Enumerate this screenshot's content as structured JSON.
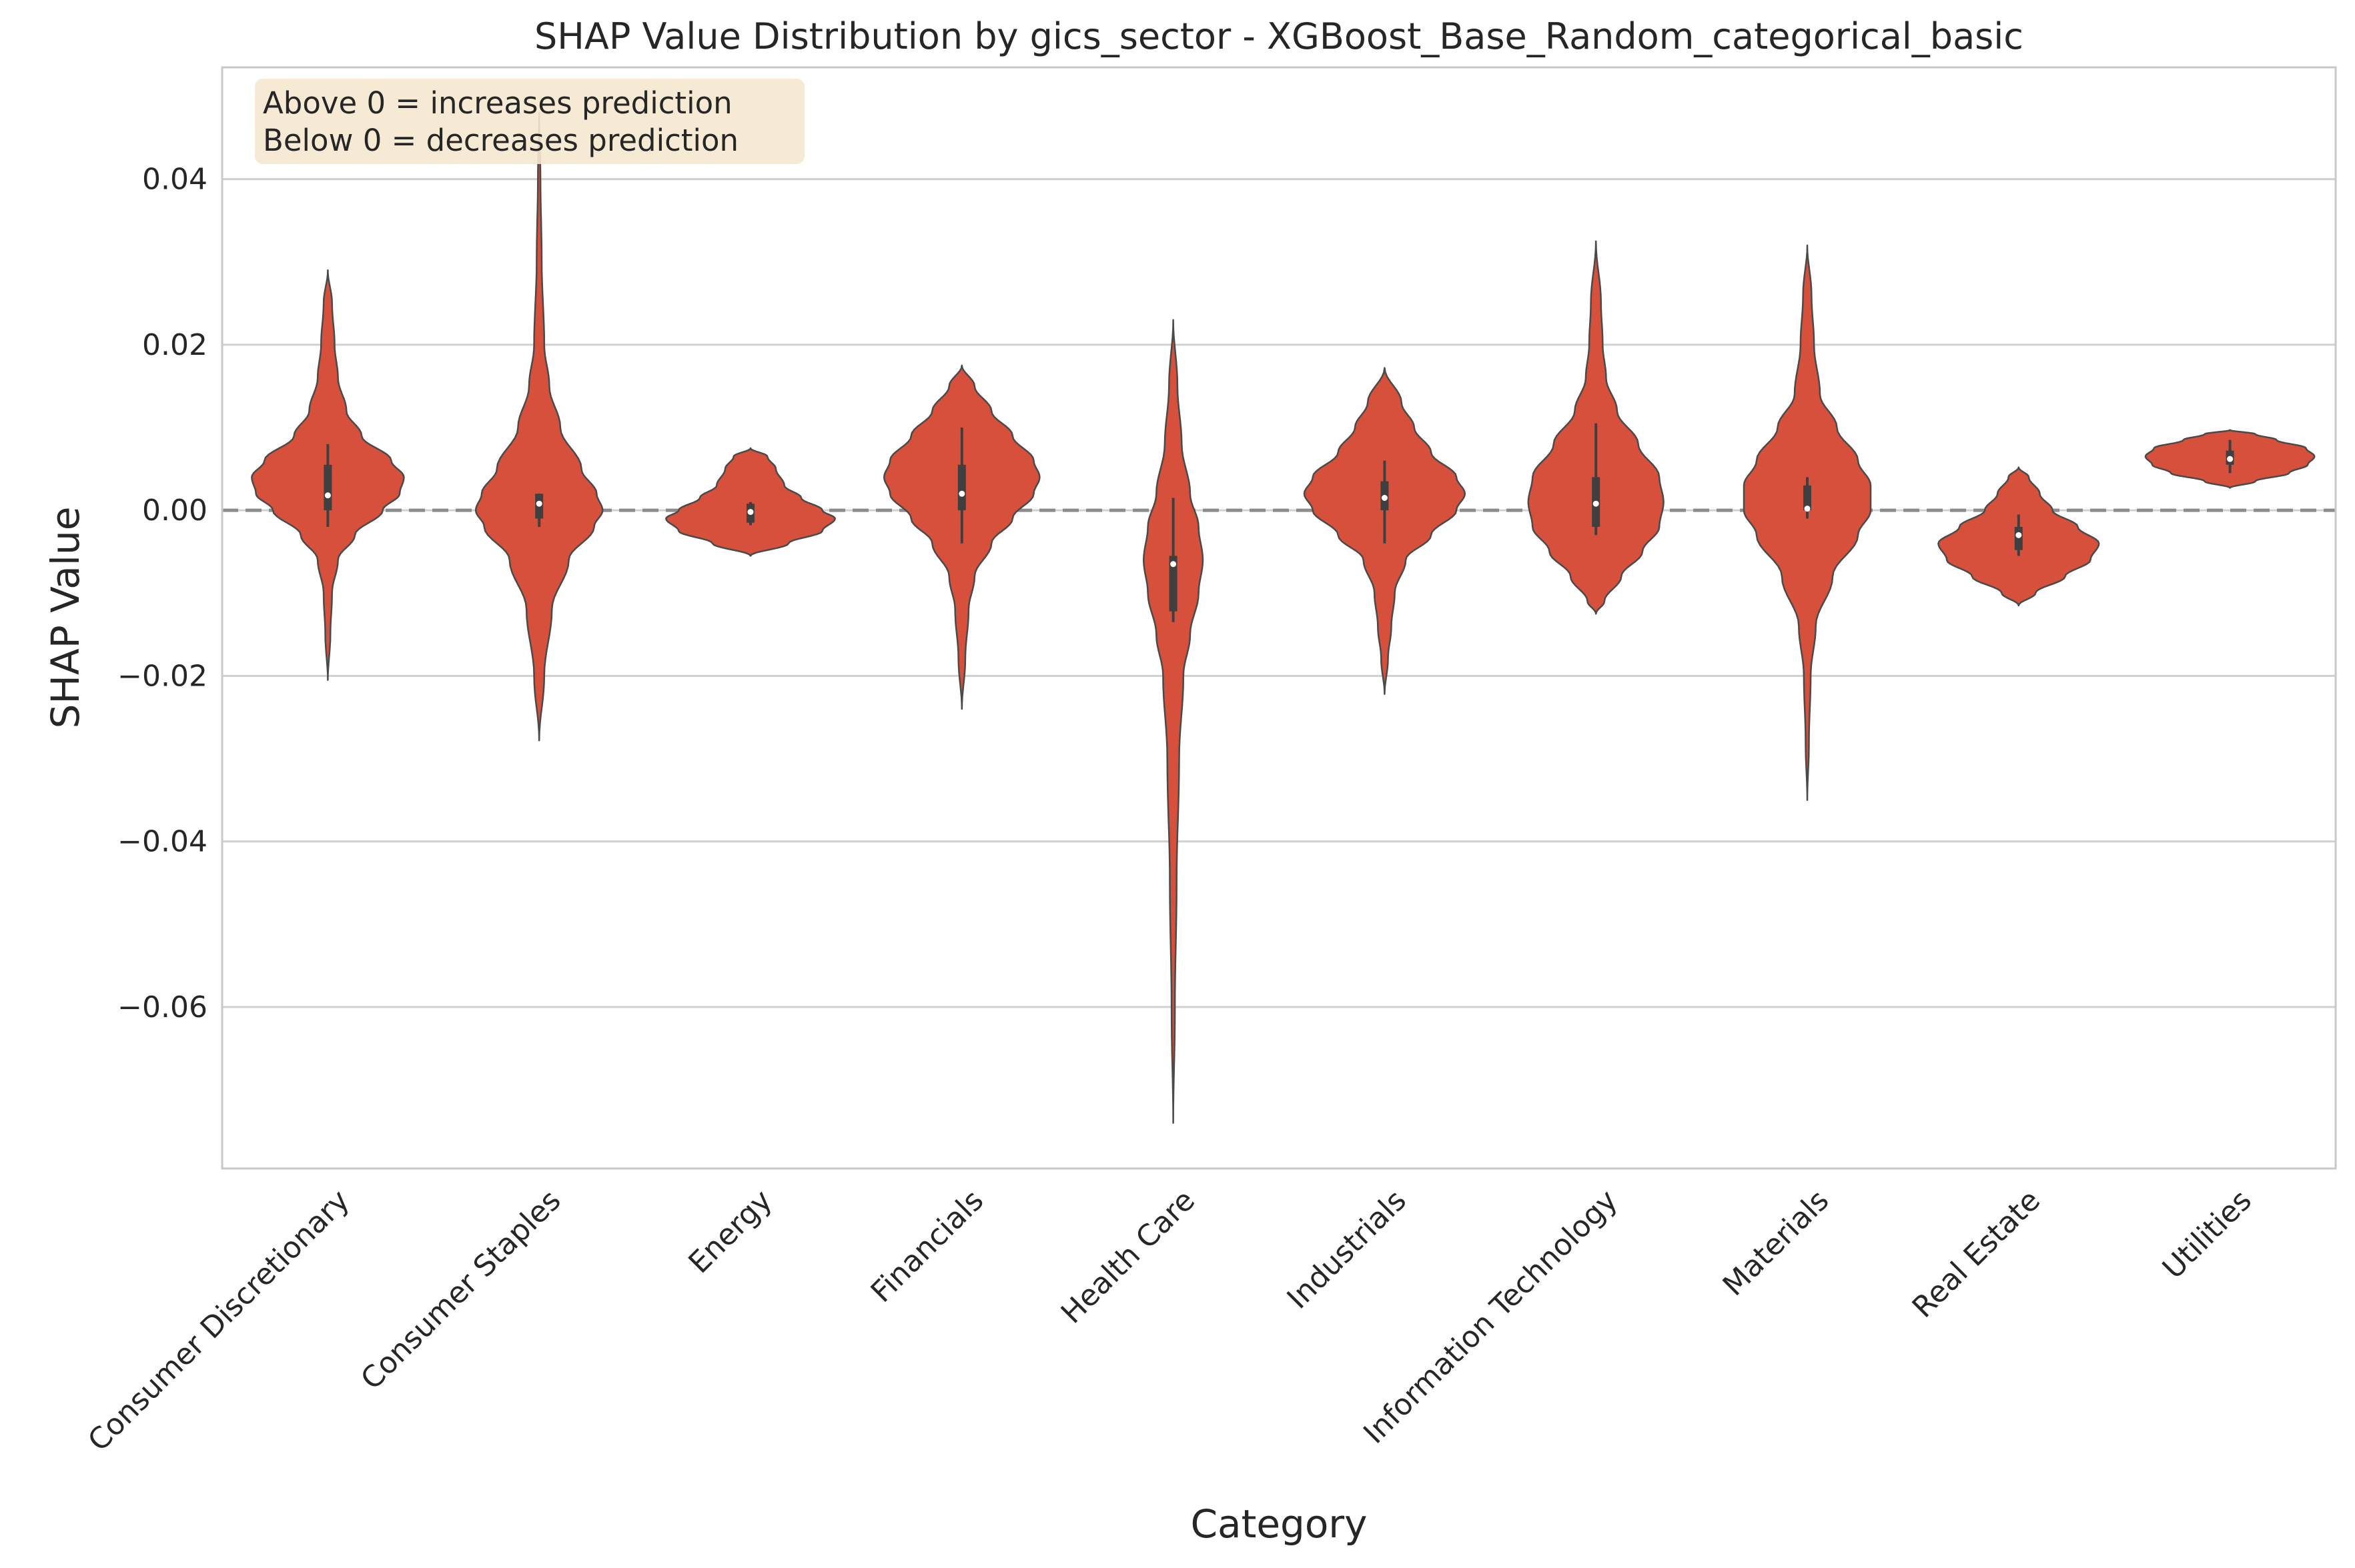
{
  "chart_data": {
    "type": "violin",
    "title": "SHAP Value Distribution by gics_sector - XGBoost_Base_Random_categorical_basic",
    "xlabel": "Category",
    "ylabel": "SHAP Value",
    "ylim": [
      -0.0795,
      0.0535
    ],
    "yticks": [
      0.04,
      0.02,
      0.0,
      -0.02,
      -0.04,
      -0.06
    ],
    "ytick_labels": [
      "0.04",
      "0.02",
      "0.00",
      "−0.02",
      "−0.04",
      "−0.06"
    ],
    "grid": true,
    "reference_line": 0.0,
    "note_lines": [
      "Above 0 = increases prediction",
      "Below 0 = decreases prediction"
    ],
    "colors": {
      "violin_fill": "#d6503c",
      "violin_edge": "#4a4a4a",
      "box": "#3f3f3f",
      "median": "#ffffff",
      "grid": "#d0d0d0",
      "reference_line": "#8c8c8c",
      "note_background": "#f6e8d0",
      "spine": "#c8c8c8"
    },
    "categories": [
      "Consumer Discretionary",
      "Consumer Staples",
      "Energy",
      "Financials",
      "Health Care",
      "Industrials",
      "Information Technology",
      "Materials",
      "Real Estate",
      "Utilities"
    ],
    "series": [
      {
        "category": "Consumer Discretionary",
        "min": -0.0205,
        "max": 0.029,
        "q1": 0.0,
        "median": 0.0018,
        "q3": 0.0055,
        "whisker_low": -0.002,
        "whisker_high": 0.008,
        "profile": [
          [
            -0.0205,
            0
          ],
          [
            -0.015,
            0.03
          ],
          [
            -0.01,
            0.05
          ],
          [
            -0.006,
            0.12
          ],
          [
            -0.003,
            0.32
          ],
          [
            0.0,
            0.65
          ],
          [
            0.002,
            0.85
          ],
          [
            0.004,
            0.9
          ],
          [
            0.006,
            0.75
          ],
          [
            0.009,
            0.4
          ],
          [
            0.012,
            0.22
          ],
          [
            0.016,
            0.12
          ],
          [
            0.02,
            0.08
          ],
          [
            0.025,
            0.05
          ],
          [
            0.029,
            0
          ]
        ]
      },
      {
        "category": "Consumer Staples",
        "min": -0.0278,
        "max": 0.048,
        "q1": -0.001,
        "median": 0.0008,
        "q3": 0.002,
        "whisker_low": -0.002,
        "whisker_high": 0.002,
        "profile": [
          [
            -0.0278,
            0
          ],
          [
            -0.02,
            0.06
          ],
          [
            -0.012,
            0.15
          ],
          [
            -0.006,
            0.35
          ],
          [
            -0.002,
            0.65
          ],
          [
            0.0,
            0.75
          ],
          [
            0.002,
            0.68
          ],
          [
            0.005,
            0.5
          ],
          [
            0.01,
            0.25
          ],
          [
            0.015,
            0.12
          ],
          [
            0.02,
            0.06
          ],
          [
            0.03,
            0.03
          ],
          [
            0.04,
            0.015
          ],
          [
            0.048,
            0
          ]
        ]
      },
      {
        "category": "Energy",
        "min": -0.0055,
        "max": 0.0075,
        "q1": -0.0015,
        "median": -0.0002,
        "q3": 0.0008,
        "whisker_low": -0.0018,
        "whisker_high": 0.001,
        "profile": [
          [
            -0.0055,
            0
          ],
          [
            -0.004,
            0.45
          ],
          [
            -0.0025,
            0.85
          ],
          [
            -0.001,
            1.0
          ],
          [
            0.0,
            0.85
          ],
          [
            0.0015,
            0.6
          ],
          [
            0.003,
            0.4
          ],
          [
            0.005,
            0.3
          ],
          [
            0.0065,
            0.2
          ],
          [
            0.0075,
            0
          ]
        ]
      },
      {
        "category": "Financials",
        "min": -0.024,
        "max": 0.0175,
        "q1": 0.0,
        "median": 0.002,
        "q3": 0.0055,
        "whisker_low": -0.004,
        "whisker_high": 0.01,
        "profile": [
          [
            -0.024,
            0
          ],
          [
            -0.018,
            0.04
          ],
          [
            -0.012,
            0.08
          ],
          [
            -0.008,
            0.15
          ],
          [
            -0.004,
            0.35
          ],
          [
            -0.001,
            0.6
          ],
          [
            0.002,
            0.85
          ],
          [
            0.004,
            0.92
          ],
          [
            0.006,
            0.85
          ],
          [
            0.009,
            0.6
          ],
          [
            0.012,
            0.35
          ],
          [
            0.015,
            0.15
          ],
          [
            0.0175,
            0
          ]
        ]
      },
      {
        "category": "Health Care",
        "min": -0.074,
        "max": 0.023,
        "q1": -0.0122,
        "median": -0.0065,
        "q3": -0.0055,
        "whisker_low": -0.0135,
        "whisker_high": 0.0015,
        "profile": [
          [
            -0.074,
            0
          ],
          [
            -0.06,
            0.02
          ],
          [
            -0.045,
            0.04
          ],
          [
            -0.03,
            0.07
          ],
          [
            -0.02,
            0.12
          ],
          [
            -0.015,
            0.2
          ],
          [
            -0.01,
            0.3
          ],
          [
            -0.006,
            0.35
          ],
          [
            -0.002,
            0.3
          ],
          [
            0.002,
            0.2
          ],
          [
            0.008,
            0.1
          ],
          [
            0.015,
            0.05
          ],
          [
            0.023,
            0
          ]
        ]
      },
      {
        "category": "Industrials",
        "min": -0.0222,
        "max": 0.0172,
        "q1": 0.0,
        "median": 0.0015,
        "q3": 0.0035,
        "whisker_low": -0.004,
        "whisker_high": 0.006,
        "profile": [
          [
            -0.0222,
            0
          ],
          [
            -0.018,
            0.04
          ],
          [
            -0.014,
            0.08
          ],
          [
            -0.01,
            0.12
          ],
          [
            -0.006,
            0.25
          ],
          [
            -0.003,
            0.55
          ],
          [
            0.0,
            0.85
          ],
          [
            0.002,
            0.95
          ],
          [
            0.004,
            0.85
          ],
          [
            0.007,
            0.55
          ],
          [
            0.01,
            0.35
          ],
          [
            0.013,
            0.2
          ],
          [
            0.0172,
            0
          ]
        ]
      },
      {
        "category": "Information Technology",
        "min": -0.0125,
        "max": 0.0325,
        "q1": -0.002,
        "median": 0.0008,
        "q3": 0.004,
        "whisker_low": -0.003,
        "whisker_high": 0.0105,
        "profile": [
          [
            -0.0125,
            0
          ],
          [
            -0.011,
            0.1
          ],
          [
            -0.008,
            0.3
          ],
          [
            -0.005,
            0.55
          ],
          [
            -0.002,
            0.75
          ],
          [
            0.001,
            0.8
          ],
          [
            0.004,
            0.75
          ],
          [
            0.008,
            0.5
          ],
          [
            0.012,
            0.25
          ],
          [
            0.016,
            0.12
          ],
          [
            0.02,
            0.08
          ],
          [
            0.025,
            0.06
          ],
          [
            0.0325,
            0
          ]
        ]
      },
      {
        "category": "Materials",
        "min": -0.035,
        "max": 0.032,
        "q1": 0.0,
        "median": 0.0002,
        "q3": 0.003,
        "whisker_low": -0.001,
        "whisker_high": 0.004,
        "profile": [
          [
            -0.035,
            0
          ],
          [
            -0.028,
            0.02
          ],
          [
            -0.02,
            0.04
          ],
          [
            -0.014,
            0.1
          ],
          [
            -0.008,
            0.3
          ],
          [
            -0.003,
            0.6
          ],
          [
            0.0,
            0.75
          ],
          [
            0.003,
            0.75
          ],
          [
            0.006,
            0.6
          ],
          [
            0.01,
            0.35
          ],
          [
            0.014,
            0.15
          ],
          [
            0.02,
            0.08
          ],
          [
            0.026,
            0.05
          ],
          [
            0.032,
            0
          ]
        ]
      },
      {
        "category": "Real Estate",
        "min": -0.0115,
        "max": 0.0052,
        "q1": -0.0048,
        "median": -0.003,
        "q3": -0.002,
        "whisker_low": -0.0055,
        "whisker_high": -0.0005,
        "profile": [
          [
            -0.0115,
            0
          ],
          [
            -0.01,
            0.2
          ],
          [
            -0.008,
            0.55
          ],
          [
            -0.006,
            0.85
          ],
          [
            -0.004,
            0.95
          ],
          [
            -0.002,
            0.7
          ],
          [
            0.0,
            0.4
          ],
          [
            0.002,
            0.25
          ],
          [
            0.004,
            0.12
          ],
          [
            0.0052,
            0
          ]
        ]
      },
      {
        "category": "Utilities",
        "min": 0.0027,
        "max": 0.0097,
        "q1": 0.0055,
        "median": 0.0062,
        "q3": 0.0072,
        "whisker_low": 0.0045,
        "whisker_high": 0.0085,
        "profile": [
          [
            0.0027,
            0
          ],
          [
            0.0035,
            0.3
          ],
          [
            0.0045,
            0.7
          ],
          [
            0.0055,
            0.92
          ],
          [
            0.0065,
            1.0
          ],
          [
            0.0075,
            0.9
          ],
          [
            0.0085,
            0.55
          ],
          [
            0.0092,
            0.3
          ],
          [
            0.0097,
            0
          ]
        ]
      }
    ]
  }
}
